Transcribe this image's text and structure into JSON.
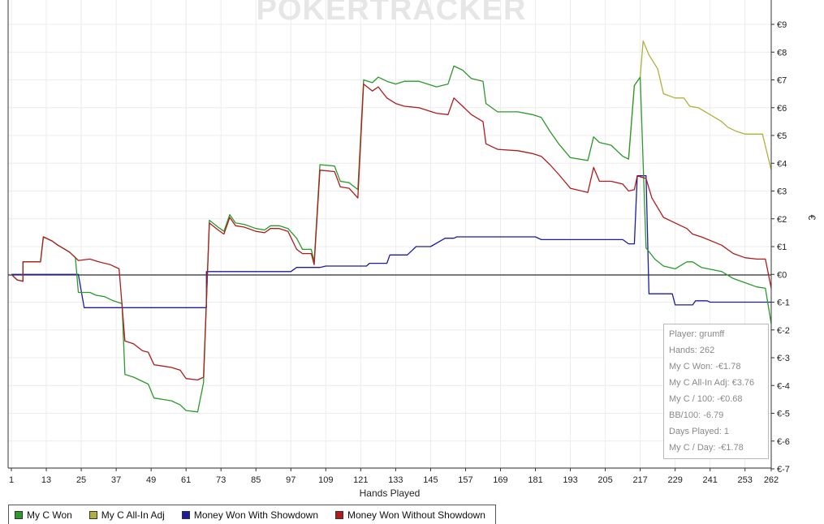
{
  "watermark": {
    "text": "POKERTRACKER"
  },
  "chart_data": {
    "type": "line",
    "xlabel": "Hands Played",
    "ylabel": "€",
    "xlim": [
      1,
      262
    ],
    "ylim": [
      -7,
      9
    ],
    "x_ticks": [
      1,
      13,
      25,
      37,
      49,
      61,
      73,
      85,
      97,
      109,
      121,
      133,
      145,
      157,
      169,
      181,
      193,
      205,
      217,
      229,
      241,
      253,
      262
    ],
    "y_ticks": [
      {
        "value": 9,
        "label": "€9"
      },
      {
        "value": 8,
        "label": "€8"
      },
      {
        "value": 7,
        "label": "€7"
      },
      {
        "value": 6,
        "label": "€6"
      },
      {
        "value": 5,
        "label": "€5"
      },
      {
        "value": 4,
        "label": "€4"
      },
      {
        "value": 3,
        "label": "€3"
      },
      {
        "value": 2,
        "label": "€2"
      },
      {
        "value": 1,
        "label": "€1"
      },
      {
        "value": 0,
        "label": "€0"
      },
      {
        "value": -1,
        "label": "€-1"
      },
      {
        "value": -2,
        "label": "€-2"
      },
      {
        "value": -3,
        "label": "€-3"
      },
      {
        "value": -4,
        "label": "€-4"
      },
      {
        "value": -5,
        "label": "€-5"
      },
      {
        "value": -6,
        "label": "€-6"
      },
      {
        "value": -7,
        "label": "€-7"
      }
    ],
    "grid": true,
    "zero_line": true,
    "legend_position": "bottom-left",
    "series": [
      {
        "name": "My C Won",
        "color": "#2a9a2a",
        "points": [
          [
            1,
            0
          ],
          [
            3,
            -0.2
          ],
          [
            5,
            -0.25
          ],
          [
            5,
            0.45
          ],
          [
            11,
            0.45
          ],
          [
            12,
            1.35
          ],
          [
            15,
            1.2
          ],
          [
            17,
            1.05
          ],
          [
            21,
            0.8
          ],
          [
            23,
            0.6
          ],
          [
            24,
            -0.65
          ],
          [
            28,
            -0.65
          ],
          [
            30,
            -0.75
          ],
          [
            33,
            -0.8
          ],
          [
            36,
            -0.95
          ],
          [
            39,
            -1.05
          ],
          [
            40,
            -3.6
          ],
          [
            43,
            -3.7
          ],
          [
            46,
            -3.85
          ],
          [
            48,
            -3.95
          ],
          [
            50,
            -4.45
          ],
          [
            53,
            -4.5
          ],
          [
            56,
            -4.55
          ],
          [
            59,
            -4.7
          ],
          [
            61,
            -4.9
          ],
          [
            65,
            -4.95
          ],
          [
            67,
            -3.9
          ],
          [
            69,
            1.95
          ],
          [
            72,
            1.7
          ],
          [
            74,
            1.55
          ],
          [
            76,
            2.15
          ],
          [
            78,
            1.85
          ],
          [
            81,
            1.8
          ],
          [
            85,
            1.65
          ],
          [
            88,
            1.6
          ],
          [
            90,
            1.75
          ],
          [
            93,
            1.75
          ],
          [
            96,
            1.65
          ],
          [
            99,
            1.3
          ],
          [
            101,
            0.9
          ],
          [
            104,
            0.9
          ],
          [
            105,
            0.45
          ],
          [
            107,
            3.95
          ],
          [
            112,
            3.9
          ],
          [
            114,
            3.35
          ],
          [
            117,
            3.3
          ],
          [
            120,
            3.05
          ],
          [
            122,
            7.0
          ],
          [
            125,
            6.9
          ],
          [
            127,
            7.1
          ],
          [
            130,
            6.95
          ],
          [
            133,
            6.85
          ],
          [
            136,
            6.95
          ],
          [
            141,
            6.95
          ],
          [
            144,
            6.85
          ],
          [
            147,
            6.75
          ],
          [
            151,
            6.85
          ],
          [
            153,
            7.5
          ],
          [
            156,
            7.35
          ],
          [
            159,
            7.05
          ],
          [
            163,
            6.95
          ],
          [
            164,
            6.15
          ],
          [
            168,
            5.85
          ],
          [
            175,
            5.85
          ],
          [
            180,
            5.75
          ],
          [
            183,
            5.65
          ],
          [
            186,
            5.15
          ],
          [
            189,
            4.7
          ],
          [
            191,
            4.45
          ],
          [
            193,
            4.2
          ],
          [
            199,
            4.1
          ],
          [
            201,
            4.95
          ],
          [
            203,
            4.75
          ],
          [
            207,
            4.65
          ],
          [
            211,
            4.25
          ],
          [
            213,
            4.15
          ],
          [
            215,
            6.8
          ],
          [
            217,
            7.1
          ],
          [
            219,
            0.95
          ],
          [
            222,
            0.55
          ],
          [
            225,
            0.3
          ],
          [
            229,
            0.2
          ],
          [
            233,
            0.45
          ],
          [
            235,
            0.45
          ],
          [
            238,
            0.25
          ],
          [
            245,
            0.1
          ],
          [
            249,
            -0.15
          ],
          [
            253,
            -0.3
          ],
          [
            257,
            -0.45
          ],
          [
            260,
            -0.5
          ],
          [
            262,
            -1.78
          ]
        ]
      },
      {
        "name": "My C All-In Adj",
        "color": "#b0b03a",
        "points": [
          [
            213,
            4.15
          ],
          [
            215,
            6.8
          ],
          [
            217,
            7.1
          ],
          [
            218,
            8.4
          ],
          [
            220,
            7.9
          ],
          [
            223,
            7.4
          ],
          [
            225,
            6.5
          ],
          [
            229,
            6.35
          ],
          [
            232,
            6.35
          ],
          [
            234,
            6.05
          ],
          [
            237,
            6.0
          ],
          [
            241,
            5.75
          ],
          [
            245,
            5.5
          ],
          [
            247,
            5.3
          ],
          [
            250,
            5.15
          ],
          [
            253,
            5.05
          ],
          [
            259,
            5.05
          ],
          [
            262,
            3.76
          ]
        ]
      },
      {
        "name": "Money Won With Showdown",
        "color": "#1c1ca0",
        "points": [
          [
            1,
            0
          ],
          [
            24,
            0
          ],
          [
            26,
            -1.2
          ],
          [
            68,
            -1.2
          ],
          [
            68,
            0.1
          ],
          [
            97,
            0.1
          ],
          [
            99,
            0.25
          ],
          [
            107,
            0.25
          ],
          [
            109,
            0.3
          ],
          [
            123,
            0.3
          ],
          [
            124,
            0.4
          ],
          [
            130,
            0.4
          ],
          [
            131,
            0.7
          ],
          [
            137,
            0.7
          ],
          [
            140,
            1.0
          ],
          [
            145,
            1.0
          ],
          [
            150,
            1.3
          ],
          [
            153,
            1.3
          ],
          [
            154,
            1.35
          ],
          [
            181,
            1.35
          ],
          [
            183,
            1.25
          ],
          [
            211,
            1.25
          ],
          [
            213,
            1.1
          ],
          [
            215,
            1.1
          ],
          [
            216,
            3.55
          ],
          [
            219,
            3.55
          ],
          [
            220,
            -0.7
          ],
          [
            228,
            -0.7
          ],
          [
            229,
            -1.1
          ],
          [
            235,
            -1.1
          ],
          [
            236,
            -0.95
          ],
          [
            240,
            -0.95
          ],
          [
            241,
            -1.0
          ],
          [
            262,
            -1.0
          ]
        ]
      },
      {
        "name": "Money Won Without Showdown",
        "color": "#b01c1c",
        "points": [
          [
            1,
            0
          ],
          [
            3,
            -0.2
          ],
          [
            5,
            -0.25
          ],
          [
            5,
            0.45
          ],
          [
            11,
            0.45
          ],
          [
            12,
            1.35
          ],
          [
            15,
            1.2
          ],
          [
            17,
            1.05
          ],
          [
            21,
            0.8
          ],
          [
            23,
            0.6
          ],
          [
            24,
            0.5
          ],
          [
            28,
            0.55
          ],
          [
            31,
            0.45
          ],
          [
            35,
            0.35
          ],
          [
            38,
            0.2
          ],
          [
            40,
            -2.4
          ],
          [
            43,
            -2.5
          ],
          [
            46,
            -2.75
          ],
          [
            48,
            -2.8
          ],
          [
            50,
            -3.25
          ],
          [
            53,
            -3.3
          ],
          [
            56,
            -3.35
          ],
          [
            59,
            -3.45
          ],
          [
            61,
            -3.75
          ],
          [
            65,
            -3.8
          ],
          [
            67,
            -3.7
          ],
          [
            69,
            1.85
          ],
          [
            72,
            1.6
          ],
          [
            74,
            1.45
          ],
          [
            76,
            2.05
          ],
          [
            78,
            1.75
          ],
          [
            81,
            1.7
          ],
          [
            85,
            1.55
          ],
          [
            88,
            1.5
          ],
          [
            90,
            1.65
          ],
          [
            93,
            1.65
          ],
          [
            96,
            1.55
          ],
          [
            99,
            0.9
          ],
          [
            101,
            0.75
          ],
          [
            104,
            0.75
          ],
          [
            105,
            0.35
          ],
          [
            107,
            3.75
          ],
          [
            112,
            3.7
          ],
          [
            114,
            3.15
          ],
          [
            117,
            3.1
          ],
          [
            120,
            2.75
          ],
          [
            122,
            6.85
          ],
          [
            125,
            6.6
          ],
          [
            127,
            6.75
          ],
          [
            130,
            6.35
          ],
          [
            133,
            6.15
          ],
          [
            136,
            6.05
          ],
          [
            141,
            6.0
          ],
          [
            144,
            5.9
          ],
          [
            147,
            5.8
          ],
          [
            151,
            5.75
          ],
          [
            153,
            6.35
          ],
          [
            156,
            6.05
          ],
          [
            159,
            5.75
          ],
          [
            163,
            5.5
          ],
          [
            164,
            4.7
          ],
          [
            168,
            4.5
          ],
          [
            175,
            4.45
          ],
          [
            180,
            4.35
          ],
          [
            183,
            4.25
          ],
          [
            186,
            3.95
          ],
          [
            189,
            3.6
          ],
          [
            191,
            3.35
          ],
          [
            193,
            3.1
          ],
          [
            199,
            2.95
          ],
          [
            201,
            3.85
          ],
          [
            203,
            3.35
          ],
          [
            207,
            3.35
          ],
          [
            211,
            3.25
          ],
          [
            213,
            3.0
          ],
          [
            215,
            3.05
          ],
          [
            216,
            3.55
          ],
          [
            219,
            3.45
          ],
          [
            221,
            2.75
          ],
          [
            225,
            2.05
          ],
          [
            229,
            1.85
          ],
          [
            233,
            1.65
          ],
          [
            235,
            1.45
          ],
          [
            238,
            1.35
          ],
          [
            245,
            1.05
          ],
          [
            249,
            0.75
          ],
          [
            253,
            0.6
          ],
          [
            257,
            0.55
          ],
          [
            260,
            0.55
          ],
          [
            262,
            -0.5
          ]
        ]
      }
    ]
  },
  "stats": {
    "player": "Player: grumff",
    "hands": "Hands: 262",
    "won": "My C Won: -€1.78",
    "all_in_adj": "My C All-In Adj: €3.76",
    "per_100": "My C / 100: -€0.68",
    "bb_100": "BB/100: -6.79",
    "days_played": "Days Played: 1",
    "per_day": "My C / Day: -€1.78"
  }
}
